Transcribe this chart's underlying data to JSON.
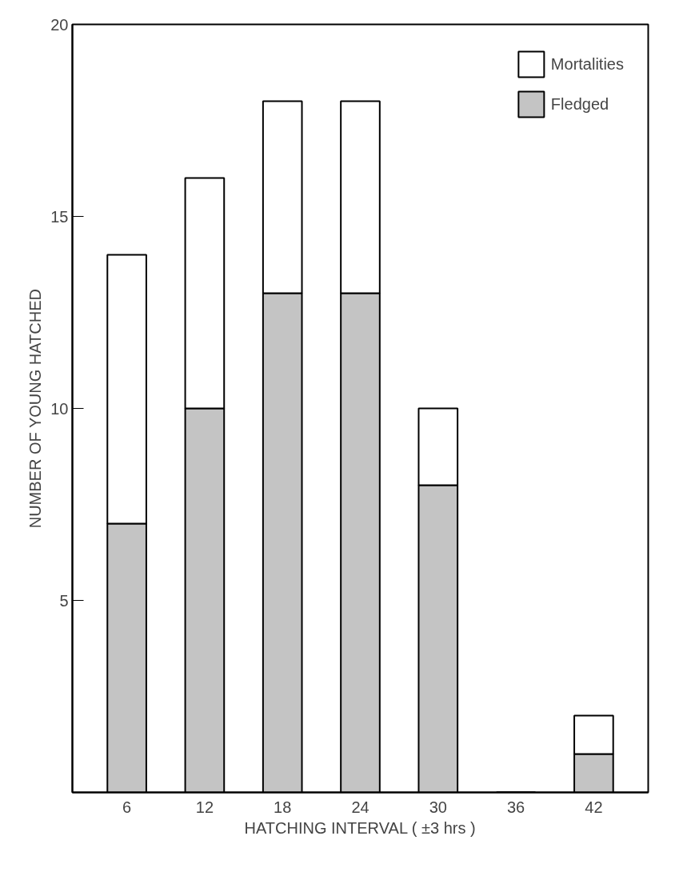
{
  "chart_data": {
    "type": "bar",
    "stacked": true,
    "xlabel": "HATCHING INTERVAL ( ±3 hrs )",
    "ylabel": "NUMBER OF YOUNG HATCHED",
    "categories": [
      "6",
      "12",
      "18",
      "24",
      "30",
      "36",
      "42"
    ],
    "series": [
      {
        "name": "Fledged",
        "color": "#c4c4c4",
        "values": [
          7,
          10,
          13,
          13,
          8,
          0,
          1
        ]
      },
      {
        "name": "Mortalities",
        "color": "#ffffff",
        "values": [
          7,
          6,
          5,
          5,
          2,
          0,
          1
        ]
      }
    ],
    "ylim": [
      0,
      20
    ],
    "yticks": [
      5,
      10,
      15,
      20
    ],
    "grid": false,
    "legend": "top right"
  }
}
